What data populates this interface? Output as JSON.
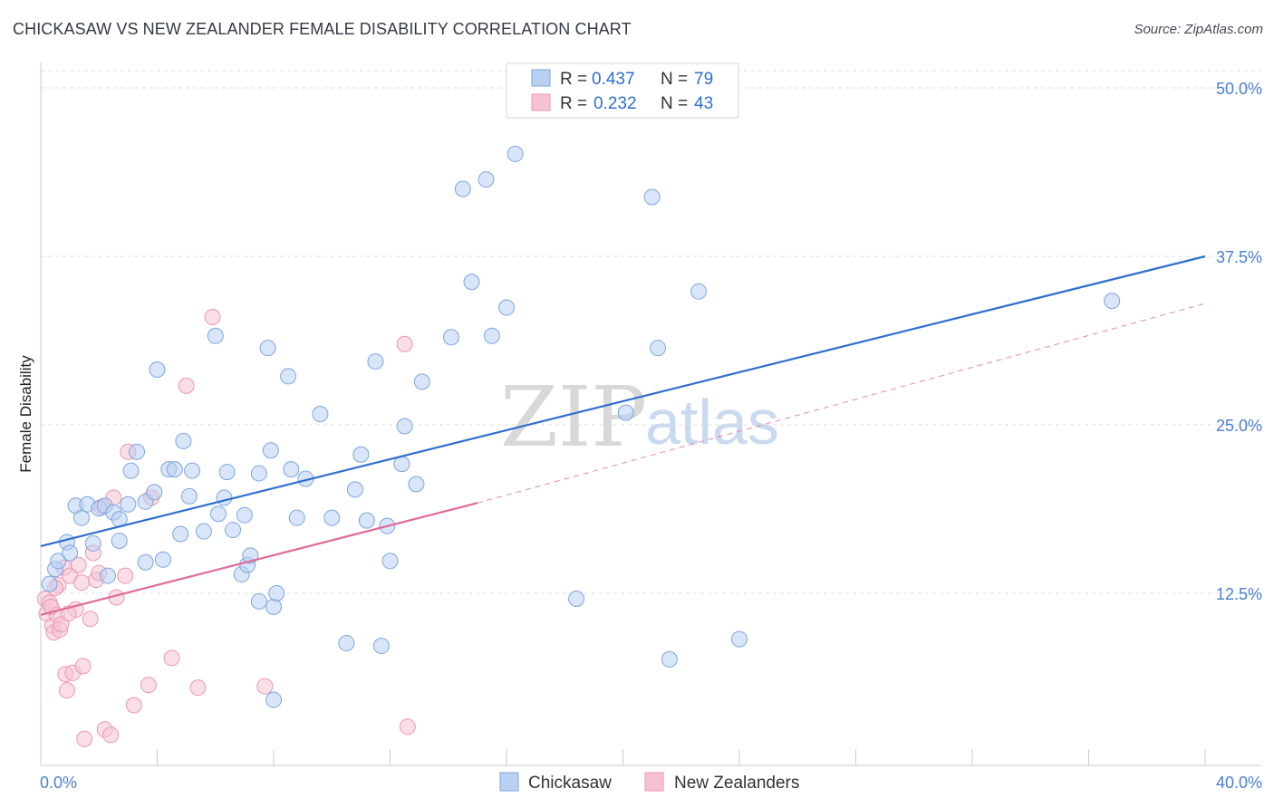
{
  "title": "CHICKASAW VS NEW ZEALANDER FEMALE DISABILITY CORRELATION CHART",
  "source": "Source: ZipAtlas.com",
  "watermark": {
    "zip": "ZIP",
    "atlas": "atlas"
  },
  "colors": {
    "blue_fill": "#b9d0f2",
    "blue_stroke": "#7ea6de",
    "blue_line": "#2f6fcf",
    "pink_fill": "#f6c2d2",
    "pink_stroke": "#eb98b3",
    "pink_line": "#e06b98",
    "grid": "#dddddd",
    "axis_text": "#4a7fd0"
  },
  "legend": {
    "rows": [
      {
        "r_label": "R =",
        "r_value": "0.437",
        "n_label": "N =",
        "n_value": "79",
        "series": "blue"
      },
      {
        "r_label": "R =",
        "r_value": "0.232",
        "n_label": "N =",
        "n_value": "43",
        "series": "pink"
      }
    ]
  },
  "bottom_legend": [
    {
      "label": "Chickasaw",
      "series": "blue"
    },
    {
      "label": "New Zealanders",
      "series": "pink"
    }
  ],
  "chart_data": {
    "type": "scatter",
    "title": "CHICKASAW VS NEW ZEALANDER FEMALE DISABILITY CORRELATION CHART",
    "xlabel": "",
    "ylabel": "Female Disability",
    "xlim": [
      0,
      40
    ],
    "ylim": [
      0,
      52
    ],
    "x_tick_labels": [
      {
        "value": 0,
        "label": "0.0%"
      },
      {
        "value": 40,
        "label": "40.0%"
      }
    ],
    "y_tick_labels": [
      {
        "value": 12.5,
        "label": "12.5%"
      },
      {
        "value": 25.0,
        "label": "25.0%"
      },
      {
        "value": 37.5,
        "label": "37.5%"
      },
      {
        "value": 50.0,
        "label": "50.0%"
      }
    ],
    "series": [
      {
        "name": "Chickasaw",
        "color": "blue",
        "trend": {
          "x0": 0,
          "y0": 16.0,
          "x1": 40,
          "y1": 37.5,
          "style": "solid"
        },
        "points": [
          [
            0.3,
            13.2
          ],
          [
            0.5,
            14.3
          ],
          [
            0.6,
            14.9
          ],
          [
            0.9,
            16.3
          ],
          [
            1.0,
            15.5
          ],
          [
            1.2,
            19.0
          ],
          [
            1.4,
            18.1
          ],
          [
            1.6,
            19.1
          ],
          [
            1.8,
            16.2
          ],
          [
            2.0,
            18.8
          ],
          [
            2.2,
            19.0
          ],
          [
            2.3,
            13.8
          ],
          [
            2.5,
            18.5
          ],
          [
            2.7,
            16.4
          ],
          [
            3.0,
            19.1
          ],
          [
            3.1,
            21.6
          ],
          [
            3.3,
            23.0
          ],
          [
            3.6,
            19.3
          ],
          [
            3.6,
            14.8
          ],
          [
            3.9,
            20.0
          ],
          [
            4.0,
            29.1
          ],
          [
            4.2,
            15.0
          ],
          [
            4.4,
            21.7
          ],
          [
            4.6,
            21.7
          ],
          [
            4.8,
            16.9
          ],
          [
            4.9,
            23.8
          ],
          [
            5.1,
            19.7
          ],
          [
            5.2,
            21.6
          ],
          [
            5.6,
            17.1
          ],
          [
            6.0,
            31.6
          ],
          [
            6.1,
            18.4
          ],
          [
            6.3,
            19.6
          ],
          [
            6.4,
            21.5
          ],
          [
            6.6,
            17.2
          ],
          [
            6.9,
            13.9
          ],
          [
            7.0,
            18.3
          ],
          [
            7.1,
            14.6
          ],
          [
            7.2,
            15.3
          ],
          [
            7.5,
            21.4
          ],
          [
            7.5,
            11.9
          ],
          [
            7.8,
            30.7
          ],
          [
            7.9,
            23.1
          ],
          [
            8.0,
            4.6
          ],
          [
            8.0,
            11.5
          ],
          [
            8.1,
            12.5
          ],
          [
            8.5,
            28.6
          ],
          [
            8.6,
            21.7
          ],
          [
            8.8,
            18.1
          ],
          [
            9.1,
            21.0
          ],
          [
            9.6,
            25.8
          ],
          [
            10.0,
            18.1
          ],
          [
            10.5,
            8.8
          ],
          [
            10.8,
            20.2
          ],
          [
            11.0,
            22.8
          ],
          [
            11.2,
            17.9
          ],
          [
            11.5,
            29.7
          ],
          [
            11.7,
            8.6
          ],
          [
            11.9,
            17.5
          ],
          [
            12.0,
            14.9
          ],
          [
            12.4,
            22.1
          ],
          [
            12.5,
            24.9
          ],
          [
            12.9,
            20.6
          ],
          [
            13.1,
            28.2
          ],
          [
            14.1,
            31.5
          ],
          [
            14.5,
            42.5
          ],
          [
            14.8,
            35.6
          ],
          [
            15.3,
            43.2
          ],
          [
            15.5,
            31.6
          ],
          [
            16.0,
            33.7
          ],
          [
            16.3,
            45.1
          ],
          [
            18.4,
            12.1
          ],
          [
            20.1,
            25.9
          ],
          [
            21.0,
            41.9
          ],
          [
            21.2,
            30.7
          ],
          [
            21.6,
            7.6
          ],
          [
            22.6,
            34.9
          ],
          [
            24.0,
            9.1
          ],
          [
            36.8,
            34.2
          ],
          [
            2.7,
            18.0
          ]
        ]
      },
      {
        "name": "New Zealanders",
        "color": "pink",
        "trend": {
          "x0": 0,
          "y0": 10.9,
          "x1": 15.0,
          "y1": 19.2,
          "x_dash_end": 40,
          "y_dash_end": 34.0,
          "style": "solid-then-dashed"
        },
        "points": [
          [
            0.15,
            12.1
          ],
          [
            0.2,
            11.0
          ],
          [
            0.3,
            11.8
          ],
          [
            0.4,
            10.1
          ],
          [
            0.45,
            9.6
          ],
          [
            0.55,
            10.9
          ],
          [
            0.6,
            13.1
          ],
          [
            0.65,
            9.8
          ],
          [
            0.7,
            10.2
          ],
          [
            0.8,
            14.4
          ],
          [
            0.85,
            6.5
          ],
          [
            0.9,
            5.3
          ],
          [
            1.0,
            13.8
          ],
          [
            1.1,
            6.6
          ],
          [
            1.2,
            11.3
          ],
          [
            1.3,
            14.6
          ],
          [
            1.4,
            13.3
          ],
          [
            1.45,
            7.1
          ],
          [
            1.5,
            1.7
          ],
          [
            1.7,
            10.6
          ],
          [
            1.8,
            15.5
          ],
          [
            1.9,
            13.5
          ],
          [
            2.0,
            14.0
          ],
          [
            2.1,
            18.9
          ],
          [
            2.2,
            2.4
          ],
          [
            2.4,
            2.0
          ],
          [
            2.5,
            19.6
          ],
          [
            2.6,
            12.2
          ],
          [
            2.9,
            13.8
          ],
          [
            3.0,
            23.0
          ],
          [
            3.2,
            4.2
          ],
          [
            3.7,
            5.7
          ],
          [
            3.8,
            19.6
          ],
          [
            4.5,
            7.7
          ],
          [
            5.0,
            27.9
          ],
          [
            5.4,
            5.5
          ],
          [
            5.9,
            33.0
          ],
          [
            7.7,
            5.6
          ],
          [
            12.5,
            31.0
          ],
          [
            12.6,
            2.6
          ],
          [
            0.35,
            11.5
          ],
          [
            0.5,
            12.9
          ],
          [
            0.95,
            11.0
          ]
        ]
      }
    ]
  }
}
